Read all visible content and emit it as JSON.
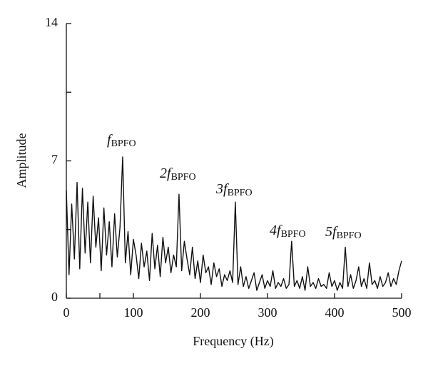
{
  "chart_data": {
    "type": "line",
    "xlabel": "Frequency (Hz)",
    "ylabel": "Amplitude",
    "xlim": [
      0,
      500
    ],
    "xticks": [
      0,
      100,
      200,
      300,
      400,
      500
    ],
    "xminor": [
      50
    ],
    "ylim": [
      0,
      14
    ],
    "yticks": [
      0,
      7,
      14
    ],
    "yminor": [
      3.5,
      10.5
    ],
    "annotations": [
      {
        "text": "f",
        "sub": "BPFO"
      },
      {
        "text": "2f",
        "sub": "BPFO"
      },
      {
        "text": "3f",
        "sub": "BPFO"
      },
      {
        "text": "4f",
        "sub": "BPFO"
      },
      {
        "text": "5f",
        "sub": "BPFO"
      }
    ],
    "x": [
      0,
      4,
      8,
      12,
      16,
      20,
      24,
      28,
      32,
      36,
      40,
      44,
      48,
      52,
      56,
      60,
      64,
      68,
      72,
      76,
      80,
      84,
      88,
      92,
      96,
      100,
      104,
      108,
      112,
      116,
      120,
      124,
      128,
      132,
      136,
      140,
      144,
      148,
      152,
      156,
      160,
      164,
      168,
      172,
      176,
      180,
      184,
      188,
      192,
      196,
      200,
      204,
      208,
      212,
      216,
      220,
      224,
      228,
      232,
      236,
      240,
      244,
      248,
      252,
      256,
      260,
      264,
      268,
      272,
      276,
      280,
      284,
      288,
      292,
      296,
      300,
      304,
      308,
      312,
      316,
      320,
      324,
      328,
      332,
      336,
      340,
      344,
      348,
      352,
      356,
      360,
      364,
      368,
      372,
      376,
      380,
      384,
      388,
      392,
      396,
      400,
      404,
      408,
      412,
      416,
      420,
      424,
      428,
      432,
      436,
      440,
      444,
      448,
      452,
      456,
      460,
      464,
      468,
      472,
      476,
      480,
      484,
      488,
      492,
      496,
      500
    ],
    "series": [
      {
        "color": "#111111",
        "values": [
          5.5,
          1.2,
          4.8,
          2.0,
          5.9,
          1.5,
          5.6,
          2.3,
          4.9,
          1.8,
          5.2,
          2.6,
          4.1,
          1.4,
          4.6,
          2.2,
          3.9,
          1.6,
          4.3,
          2.1,
          3.6,
          7.2,
          1.8,
          3.4,
          1.2,
          3.0,
          2.2,
          1.0,
          2.8,
          1.6,
          2.4,
          0.9,
          3.3,
          1.5,
          2.7,
          1.1,
          3.1,
          1.8,
          2.6,
          1.3,
          2.2,
          1.6,
          5.3,
          1.4,
          2.9,
          2.0,
          1.2,
          2.6,
          1.0,
          1.9,
          0.8,
          2.2,
          1.3,
          1.6,
          0.7,
          1.8,
          1.1,
          1.5,
          0.6,
          1.2,
          0.9,
          1.4,
          0.8,
          4.9,
          0.7,
          1.6,
          0.6,
          1.1,
          0.5,
          0.9,
          1.3,
          0.4,
          0.8,
          1.2,
          0.5,
          0.9,
          0.6,
          1.4,
          0.5,
          0.8,
          0.6,
          1.0,
          0.5,
          0.7,
          2.9,
          0.6,
          0.9,
          0.5,
          1.1,
          0.4,
          1.6,
          0.6,
          0.8,
          0.5,
          1.0,
          0.6,
          0.7,
          0.5,
          1.3,
          0.6,
          0.9,
          0.4,
          0.8,
          0.5,
          2.6,
          0.6,
          1.2,
          0.5,
          0.9,
          1.6,
          0.6,
          1.0,
          0.5,
          1.8,
          0.7,
          0.9,
          0.5,
          1.1,
          0.6,
          0.8,
          1.3,
          0.6,
          1.0,
          0.7,
          1.4,
          1.9
        ]
      }
    ]
  }
}
